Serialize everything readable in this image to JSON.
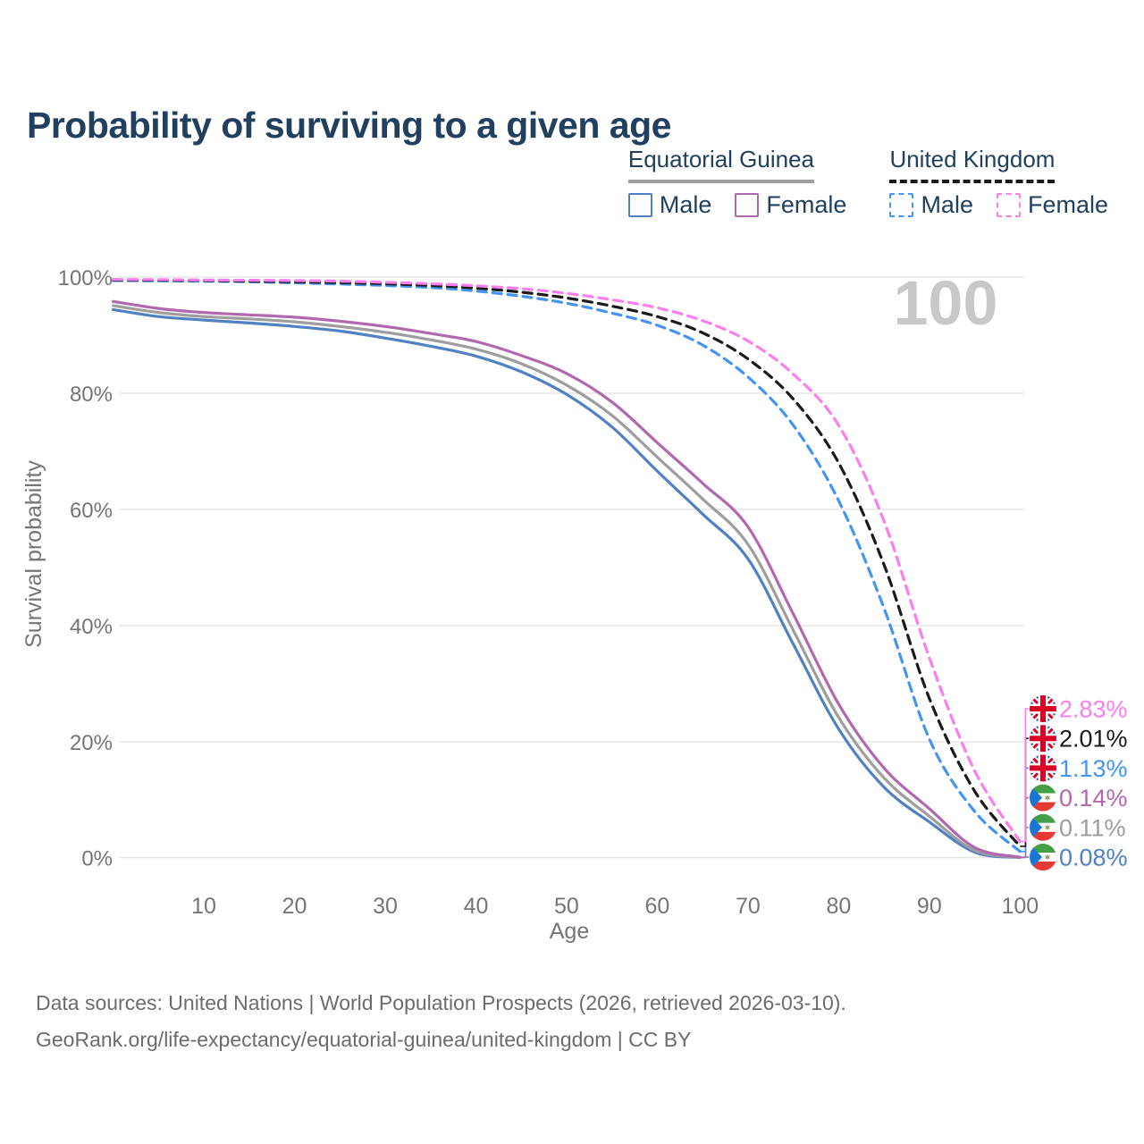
{
  "title": "Probability of surviving to a given age",
  "legend": {
    "groups": [
      {
        "name": "Equatorial Guinea",
        "line_style": "solid",
        "underline_color": "#a0a0a0",
        "items": [
          {
            "label": "Male",
            "color": "#5081c3"
          },
          {
            "label": "Female",
            "color": "#b168ae"
          }
        ]
      },
      {
        "name": "United Kingdom",
        "line_style": "dashed",
        "underline_color": "#1a1a1a",
        "items": [
          {
            "label": "Male",
            "color": "#4495f3"
          },
          {
            "label": "Female",
            "color": "#fb7df0"
          }
        ]
      }
    ]
  },
  "watermark_age_label": "100",
  "chart_data": {
    "type": "line",
    "title": "Probability of surviving to a given age",
    "xlabel": "Age",
    "ylabel": "Survival probability",
    "xlim": [
      0,
      100
    ],
    "ylim": [
      0,
      100
    ],
    "x_ticks": [
      10,
      20,
      30,
      40,
      50,
      60,
      70,
      80,
      90,
      100
    ],
    "y_ticks": [
      0,
      20,
      40,
      60,
      80,
      100
    ],
    "y_tick_suffix": "%",
    "grid": "horizontal-only",
    "legend_position": "top-right",
    "x": [
      0,
      5,
      10,
      15,
      20,
      25,
      30,
      35,
      40,
      45,
      50,
      55,
      60,
      65,
      70,
      75,
      80,
      85,
      90,
      95,
      100
    ],
    "series": [
      {
        "id": "gq-male",
        "name": "Equatorial Guinea — Male",
        "country": "Equatorial Guinea",
        "sex": "Male",
        "flag": "gq",
        "color": "#5081c3",
        "dashed": false,
        "end_label": "0.08%",
        "values": [
          94.4,
          93.2,
          92.6,
          92.1,
          91.5,
          90.7,
          89.5,
          88.1,
          86.4,
          83.7,
          79.8,
          74.2,
          66.6,
          59.2,
          51.5,
          36.8,
          22.2,
          12.2,
          6.2,
          1.0,
          0.08
        ]
      },
      {
        "id": "gq-both",
        "name": "Equatorial Guinea — Both sexes",
        "country": "Equatorial Guinea",
        "sex": "Both sexes",
        "flag": "gq",
        "color": "#9e9e9e",
        "dashed": false,
        "end_label": "0.11%",
        "values": [
          95.1,
          93.9,
          93.2,
          92.8,
          92.3,
          91.5,
          90.5,
          89.2,
          87.6,
          85.1,
          81.4,
          76.2,
          69.0,
          61.8,
          54.0,
          39.2,
          24.2,
          13.8,
          7.2,
          1.3,
          0.11
        ]
      },
      {
        "id": "gq-female",
        "name": "Equatorial Guinea — Female",
        "country": "Equatorial Guinea",
        "sex": "Female",
        "flag": "gq",
        "color": "#b168ae",
        "dashed": false,
        "end_label": "0.14%",
        "values": [
          95.8,
          94.6,
          93.9,
          93.5,
          93.1,
          92.4,
          91.5,
          90.3,
          88.9,
          86.5,
          83.4,
          78.5,
          71.5,
          64.5,
          57.0,
          42.0,
          26.5,
          15.5,
          8.5,
          1.8,
          0.14
        ]
      },
      {
        "id": "uk-male",
        "name": "United Kingdom — Male",
        "country": "United Kingdom",
        "sex": "Male",
        "flag": "uk",
        "color": "#4495f3",
        "dashed": true,
        "end_label": "1.13%",
        "values": [
          99.4,
          99.35,
          99.3,
          99.2,
          99.0,
          98.8,
          98.55,
          98.2,
          97.6,
          96.7,
          95.5,
          93.8,
          91.7,
          88.3,
          82.8,
          74.5,
          61.5,
          43.0,
          20.5,
          8.0,
          1.13
        ]
      },
      {
        "id": "uk-both",
        "name": "United Kingdom — Both sexes",
        "country": "United Kingdom",
        "sex": "Both sexes",
        "flag": "uk",
        "color": "#1a1a1a",
        "dashed": true,
        "end_label": "2.01%",
        "values": [
          99.5,
          99.45,
          99.4,
          99.3,
          99.2,
          99.05,
          98.85,
          98.55,
          98.1,
          97.4,
          96.4,
          95.0,
          93.2,
          90.4,
          85.9,
          79.0,
          68.0,
          50.5,
          27.5,
          11.5,
          2.01
        ]
      },
      {
        "id": "uk-female",
        "name": "United Kingdom — Female",
        "country": "United Kingdom",
        "sex": "Female",
        "flag": "uk",
        "color": "#fb7df0",
        "dashed": true,
        "end_label": "2.83%",
        "values": [
          99.6,
          99.55,
          99.5,
          99.45,
          99.4,
          99.3,
          99.1,
          98.85,
          98.5,
          98.0,
          97.2,
          96.1,
          94.7,
          92.5,
          89.0,
          83.3,
          74.5,
          58.0,
          34.5,
          15.0,
          2.83
        ]
      }
    ]
  },
  "footer": {
    "line1": "Data sources: United Nations | World Population Prospects (2026, retrieved 2026-03-10).",
    "line2": "GeoRank.org/life-expectancy/equatorial-guinea/united-kingdom | CC BY"
  }
}
